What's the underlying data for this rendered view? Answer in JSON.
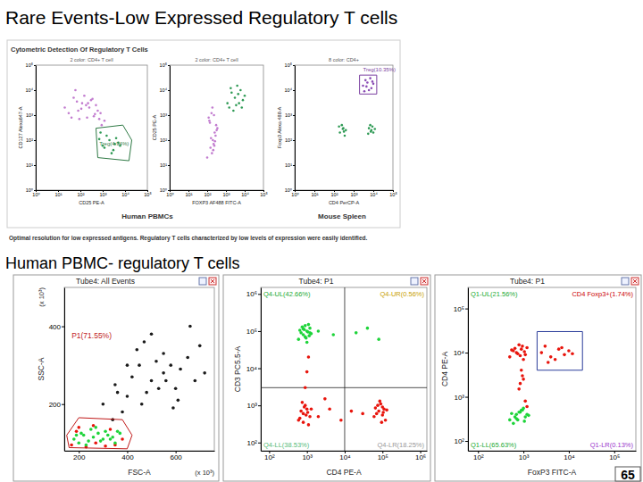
{
  "slide": {
    "title": "Rare Events-Low Expressed Regulatory T cells",
    "subtitle": "Human PBMC- regulatory T cells",
    "page_number": 65
  },
  "figure": {
    "title": "Cytometric Detection Of Regulatory T Cells",
    "sample_labels": [
      "Human PBMCs",
      "Mouse Spleen"
    ],
    "caption": "Optimal resolution for low expressed antigens. Regulatory T cells characterized by low levels of expression were easily identified."
  },
  "chart_data": [
    {
      "type": "scatter",
      "title": "2 color: CD4+ T cell",
      "x_label": "CD25 PE-A",
      "y_label": "CD127 Alexa647-A",
      "log": true,
      "xlim": [
        1,
        100000
      ],
      "ylim": [
        1,
        100000
      ],
      "xticks": [
        {
          "value": 1,
          "label": "10⁰"
        },
        {
          "value": 10,
          "label": "10¹"
        },
        {
          "value": 100,
          "label": "10²"
        },
        {
          "value": 1000,
          "label": "10³"
        },
        {
          "value": 10000,
          "label": "10⁴"
        },
        {
          "value": 100000,
          "label": "10⁵"
        }
      ],
      "yticks": [
        {
          "value": 1,
          "label": "10⁰"
        },
        {
          "value": 10,
          "label": "10¹"
        },
        {
          "value": 100,
          "label": "10²"
        },
        {
          "value": 1000,
          "label": "10³"
        },
        {
          "value": 10000,
          "label": "10⁴"
        },
        {
          "value": 100000,
          "label": "10⁵"
        }
      ],
      "series": [
        {
          "color": "#c27ccf",
          "x": [
            20,
            50,
            80,
            120,
            200,
            300,
            500,
            800,
            1200,
            40,
            70,
            150,
            250,
            400,
            600,
            30,
            90,
            180,
            350,
            700,
            60,
            110,
            220,
            450,
            900
          ],
          "values": [
            2000,
            5000,
            1500,
            3000,
            800,
            4000,
            2500,
            1200,
            600,
            800,
            3500,
            6000,
            2000,
            900,
            1500,
            1200,
            700,
            2500,
            4500,
            700,
            10000,
            1800,
            3000,
            1100,
            400
          ]
        },
        {
          "color": "#2f9a55",
          "x": [
            1000,
            2000,
            3000,
            1500,
            5000,
            800,
            2500,
            4000,
            1200,
            3500,
            700,
            6000
          ],
          "values": [
            60,
            100,
            40,
            150,
            80,
            200,
            30,
            120,
            50,
            70,
            110,
            60
          ]
        }
      ],
      "gates": [
        {
          "label": "Treg(4.94%)",
          "color": "#2f7a45",
          "label_x": 700,
          "label_y": 60,
          "x": [
            500,
            8000,
            20000,
            15000,
            600
          ],
          "y": [
            300,
            400,
            100,
            15,
            20
          ]
        }
      ]
    },
    {
      "type": "scatter",
      "title": "2 color: CD4+ T cell",
      "x_label": "FOXP3 AF488 FITC-A",
      "y_label": "CD25 PE-A",
      "log": true,
      "xlim": [
        1,
        100000
      ],
      "ylim": [
        1,
        100000
      ],
      "xticks": [
        {
          "value": 1,
          "label": "10⁰"
        },
        {
          "value": 10,
          "label": "10¹"
        },
        {
          "value": 100,
          "label": "10²"
        },
        {
          "value": 1000,
          "label": "10³"
        },
        {
          "value": 10000,
          "label": "10⁴"
        },
        {
          "value": 100000,
          "label": "10⁵"
        }
      ],
      "yticks": [
        {
          "value": 1,
          "label": "10⁰"
        },
        {
          "value": 10,
          "label": "10¹"
        },
        {
          "value": 100,
          "label": "10²"
        },
        {
          "value": 1000,
          "label": "10³"
        },
        {
          "value": 10000,
          "label": "10⁴"
        },
        {
          "value": 100000,
          "label": "10⁵"
        }
      ],
      "series": [
        {
          "color": "#c27ccf",
          "x": [
            100,
            150,
            200,
            250,
            300,
            120,
            180,
            220,
            280,
            350,
            130,
            170,
            210,
            260,
            320,
            140,
            190,
            240,
            160,
            230
          ],
          "values": [
            20,
            50,
            100,
            200,
            400,
            800,
            30,
            70,
            150,
            300,
            600,
            1200,
            40,
            90,
            250,
            500,
            2000,
            60,
            120,
            1000
          ]
        },
        {
          "color": "#2f9a55",
          "x": [
            1500,
            3000,
            5000,
            2000,
            8000,
            4000,
            2500,
            6000,
            1200,
            3500,
            10000,
            7000,
            1800,
            4500
          ],
          "values": [
            2000,
            5000,
            3000,
            8000,
            4000,
            15000,
            1500,
            10000,
            3000,
            2500,
            6000,
            2000,
            12000,
            7000
          ]
        }
      ]
    },
    {
      "type": "scatter",
      "title": "8 color: CD4+",
      "x_label": "CD4 PerCP-A",
      "y_label": "Foxp3 Alexa 488-A",
      "log": true,
      "xlim": [
        1,
        100000
      ],
      "ylim": [
        1,
        100000
      ],
      "xticks": [
        {
          "value": 1,
          "label": "10⁰"
        },
        {
          "value": 10,
          "label": "10¹"
        },
        {
          "value": 100,
          "label": "10²"
        },
        {
          "value": 1000,
          "label": "10³"
        },
        {
          "value": 10000,
          "label": "10⁴"
        },
        {
          "value": 100000,
          "label": "10⁵"
        }
      ],
      "yticks": [
        {
          "value": 1,
          "label": "10⁰"
        },
        {
          "value": 10,
          "label": "10¹"
        },
        {
          "value": 100,
          "label": "10²"
        },
        {
          "value": 1000,
          "label": "10³"
        },
        {
          "value": 10000,
          "label": "10⁴"
        },
        {
          "value": 100000,
          "label": "10⁵"
        }
      ],
      "series": [
        {
          "color": "#2f9a55",
          "x": [
            200,
            300,
            400,
            250,
            350,
            180,
            320,
            280,
            6000,
            8000,
            10000,
            7000,
            9000,
            5500,
            12000,
            7500
          ],
          "values": [
            200,
            300,
            250,
            400,
            150,
            350,
            220,
            280,
            300,
            250,
            200,
            400,
            350,
            180,
            280,
            220
          ]
        },
        {
          "color": "#8a4bb5",
          "x": [
            3000,
            5000,
            8000,
            4000,
            6000,
            10000,
            3500,
            7000,
            4500,
            9000
          ],
          "values": [
            15000,
            20000,
            12000,
            25000,
            10000,
            18000,
            9000,
            30000,
            14000,
            22000
          ]
        }
      ],
      "gates": [
        {
          "label": "Treg(10.35%)",
          "color": "#7a3ea0",
          "label_x": 3000,
          "label_y": 55000,
          "x": [
            2000,
            15000,
            15000,
            2000
          ],
          "y": [
            7000,
            7000,
            40000,
            40000
          ]
        }
      ]
    },
    {
      "type": "scatter",
      "title": "Tube4: All Events",
      "x_label": "FSC-A",
      "y_label": "SSC-A",
      "x_unit": "(x 10³)",
      "y_unit": "(x 10³)",
      "xlim": [
        140,
        760
      ],
      "ylim": [
        80,
        500
      ],
      "xticks": [
        200,
        400,
        600
      ],
      "yticks": [
        200,
        400
      ],
      "series": [
        {
          "color": "#1a1a1a",
          "x": [
            300,
            350,
            400,
            450,
            500,
            550,
            600,
            650,
            700,
            380,
            420,
            480,
            520,
            560,
            620,
            440,
            500,
            580,
            340,
            460,
            530,
            610,
            680,
            400,
            470,
            550,
            660,
            720,
            360,
            590
          ],
          "values": [
            200,
            250,
            220,
            300,
            260,
            280,
            240,
            320,
            350,
            180,
            270,
            230,
            310,
            260,
            290,
            340,
            380,
            300,
            160,
            200,
            240,
            210,
            260,
            300,
            360,
            330,
            400,
            280,
            230,
            190
          ]
        },
        {
          "color": "#e8140c",
          "x": [
            170,
            190,
            230,
            270,
            310,
            350,
            380,
            200,
            260,
            330
          ],
          "values": [
            95,
            130,
            90,
            100,
            92,
            95,
            110,
            140,
            145,
            135
          ]
        },
        {
          "color": "#1ed43a",
          "x": [
            180,
            200,
            220,
            240,
            260,
            280,
            300,
            320,
            340,
            360,
            210,
            250,
            290,
            330,
            230,
            270,
            310,
            350,
            190,
            370
          ],
          "values": [
            110,
            100,
            120,
            105,
            115,
            125,
            110,
            120,
            115,
            130,
            125,
            135,
            105,
            110,
            95,
            140,
            130,
            100,
            120,
            125
          ]
        }
      ],
      "gates": [
        {
          "label": "P1(71.55%)",
          "color": "#c01818",
          "label_x": 170,
          "label_y": 370,
          "x": [
            160,
            400,
            420,
            380,
            200,
            150
          ],
          "y": [
            88,
            85,
            120,
            160,
            165,
            120
          ]
        }
      ]
    },
    {
      "type": "scatter",
      "title": "Tube4: P1",
      "x_label": "CD4 PE-A",
      "y_label": "CD3 PC5.5-A",
      "log": true,
      "xlim": [
        60,
        1500000
      ],
      "ylim": [
        60,
        1500000
      ],
      "xticks": [
        {
          "value": 100,
          "label": "10²"
        },
        {
          "value": 1000,
          "label": "10³"
        },
        {
          "value": 10000,
          "label": "10⁴"
        },
        {
          "value": 100000,
          "label": "10⁵"
        },
        {
          "value": 1000000,
          "label": "10⁶"
        }
      ],
      "yticks": [
        {
          "value": 100,
          "label": "10²"
        },
        {
          "value": 1000,
          "label": "10³"
        },
        {
          "value": 10000,
          "label": "10⁴"
        },
        {
          "value": 100000,
          "label": "10⁵"
        },
        {
          "value": 1000000,
          "label": "10⁶"
        }
      ],
      "series": [
        {
          "color": "#e8140c",
          "x": [
            600,
            800,
            1000,
            1200,
            900,
            700,
            1100,
            850,
            950,
            750,
            1050,
            650,
            1300,
            800,
            60000,
            80000,
            100000,
            120000,
            90000,
            70000,
            110000,
            85000,
            95000,
            75000,
            130000,
            100000,
            65000,
            105000,
            2000,
            4000,
            8000,
            15000,
            30000,
            3000,
            900,
            1000,
            1100
          ],
          "values": [
            400,
            600,
            800,
            500,
            1000,
            700,
            300,
            900,
            550,
            1200,
            650,
            450,
            800,
            350,
            500,
            700,
            900,
            400,
            1100,
            600,
            800,
            1300,
            350,
            1000,
            750,
            550,
            850,
            650,
            500,
            800,
            400,
            700,
            600,
            1500,
            3000,
            8000,
            20000
          ]
        },
        {
          "color": "#1ed43a",
          "x": [
            600,
            800,
            1000,
            1200,
            900,
            700,
            1100,
            1300,
            850,
            950,
            750,
            1050,
            1150,
            650,
            1000,
            900,
            800,
            1200,
            2000,
            5000,
            20000,
            40000,
            80000
          ],
          "values": [
            60000,
            80000,
            100000,
            120000,
            70000,
            90000,
            150000,
            85000,
            110000,
            65000,
            130000,
            95000,
            75000,
            105000,
            50000,
            140000,
            115000,
            90000,
            100000,
            80000,
            90000,
            120000,
            60000
          ]
        }
      ],
      "quadrant": {
        "x": 10000,
        "y": 3000
      },
      "quadrant_labels": {
        "labels": [
          "Q4-UL(42.66%)",
          "Q4-UR(0.56%)",
          "Q4-LL(38.53%)",
          "Q4-LR(18.25%)"
        ],
        "colors": [
          "#22aa33",
          "#c8a000",
          "#55bb77",
          "#999999"
        ]
      }
    },
    {
      "type": "scatter",
      "title": "Tube4: P1",
      "x_label": "FoxP3 FITC-A",
      "y_label": "CD4 PE-A",
      "log": true,
      "xlim": [
        60,
        300000
      ],
      "ylim": [
        60,
        300000
      ],
      "xticks": [
        {
          "value": 100,
          "label": "10²"
        },
        {
          "value": 1000,
          "label": "10³"
        },
        {
          "value": 10000,
          "label": "10⁴"
        },
        {
          "value": 100000,
          "label": "10⁵"
        }
      ],
      "yticks": [
        {
          "value": 100,
          "label": "10²"
        },
        {
          "value": 1000,
          "label": "10³"
        },
        {
          "value": 10000,
          "label": "10⁴"
        },
        {
          "value": 100000,
          "label": "10⁵"
        }
      ],
      "series": [
        {
          "color": "#1ed43a",
          "x": [
            500,
            700,
            900,
            1100,
            800,
            600,
            1000,
            1200,
            750,
            950,
            650,
            850,
            1050,
            550,
            1300,
            700
          ],
          "values": [
            300,
            400,
            500,
            350,
            450,
            250,
            550,
            400,
            300,
            500,
            350,
            450,
            280,
            420,
            380,
            320
          ]
        },
        {
          "color": "#e8140c",
          "x": [
            500,
            700,
            900,
            1100,
            800,
            600,
            1000,
            1200,
            750,
            950,
            650,
            850,
            1050,
            550,
            2500,
            4000,
            6000,
            8000,
            3000,
            5000,
            10000,
            7000,
            3500,
            12000,
            900,
            1000,
            800,
            1100,
            950,
            1200,
            850
          ],
          "values": [
            8000,
            10000,
            12000,
            9000,
            15000,
            11000,
            7000,
            13000,
            9500,
            14000,
            12500,
            8500,
            10500,
            11500,
            10000,
            8000,
            12000,
            9000,
            14000,
            7000,
            11000,
            13000,
            6000,
            9500,
            4000,
            2500,
            1500,
            800,
            3000,
            600,
            2000
          ]
        }
      ],
      "gates": [
        {
          "color": "#2a3c9a",
          "x": [
            2000,
            20000,
            20000,
            2000
          ],
          "y": [
            4000,
            4000,
            30000,
            30000
          ]
        }
      ],
      "quadrant_labels": {
        "labels": [
          "Q1-UL(21.56%)",
          "CD4 Foxp3+(1.74%)",
          "Q1-LL(65.63%)",
          "Q1-LR(0.13%)"
        ],
        "colors": [
          "#22aa33",
          "#cc0000",
          "#22aa33",
          "#9933cc"
        ]
      }
    }
  ]
}
